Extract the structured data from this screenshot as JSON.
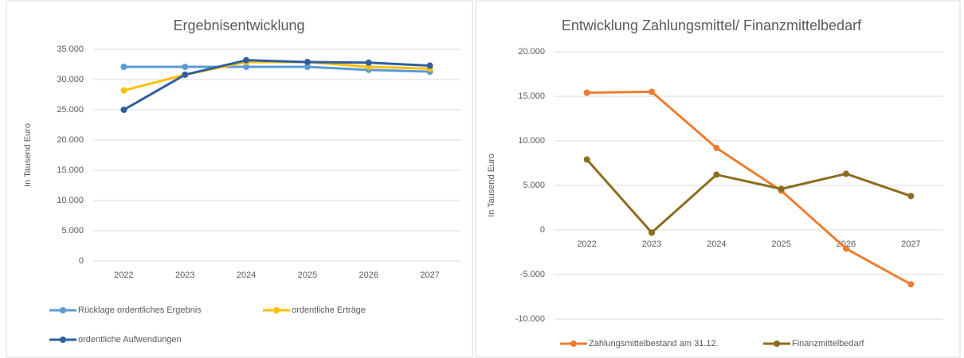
{
  "chart_data": [
    {
      "type": "line",
      "title": "Ergebnisentwicklung",
      "y_label": "In Tausend Euro",
      "categories": [
        "2022",
        "2023",
        "2024",
        "2025",
        "2026",
        "2027"
      ],
      "series": [
        {
          "name": "Rücklage ordentliches Ergebnis",
          "color": "#5b9bd5",
          "values": [
            32100,
            32100,
            32100,
            32100,
            31600,
            31300
          ]
        },
        {
          "name": "ordentliche Erträge",
          "color": "#ffc000",
          "values": [
            28200,
            30800,
            32900,
            32900,
            32100,
            31800
          ]
        },
        {
          "name": "ordentliche Aufwendungen",
          "color": "#2f5fa0",
          "values": [
            25000,
            30800,
            33200,
            32900,
            32800,
            32300
          ]
        }
      ],
      "ylim": [
        0,
        35000
      ],
      "yticks": [
        0,
        {
          "value": 5000,
          "label": "5.000"
        },
        {
          "value": 10000,
          "label": "10.000"
        },
        {
          "value": 15000,
          "label": "15.000"
        },
        {
          "value": 20000,
          "label": "20.000"
        },
        {
          "value": 25000,
          "label": "25.000"
        },
        {
          "value": 30000,
          "label": "30.000"
        },
        {
          "value": 35000,
          "label": "35.000"
        }
      ],
      "grid": true
    },
    {
      "type": "line",
      "title": "Entwicklung Zahlungsmittel/ Finanzmittelbedarf",
      "y_label": "In Tausend Euro",
      "categories": [
        "2022",
        "2023",
        "2024",
        "2025",
        "2026",
        "2027"
      ],
      "series": [
        {
          "name": "Zahlungsmittelbestand am 31.12.",
          "color": "#ed7d31",
          "values": [
            15400,
            15500,
            9200,
            4400,
            -2100,
            -6100
          ]
        },
        {
          "name": "Finanzmittelbedarf",
          "color": "#8c6d1f",
          "values": [
            7900,
            -300,
            6200,
            4600,
            6300,
            3800
          ]
        }
      ],
      "ylim": [
        -10000,
        20000
      ],
      "yticks": [
        {
          "value": -10000,
          "label": "-10.000"
        },
        {
          "value": -5000,
          "label": "-5.000"
        },
        0,
        {
          "value": 5000,
          "label": "5.000"
        },
        {
          "value": 10000,
          "label": "10.000"
        },
        {
          "value": 15000,
          "label": "15.000"
        },
        {
          "value": 20000,
          "label": "20.000"
        }
      ],
      "grid": true
    }
  ]
}
